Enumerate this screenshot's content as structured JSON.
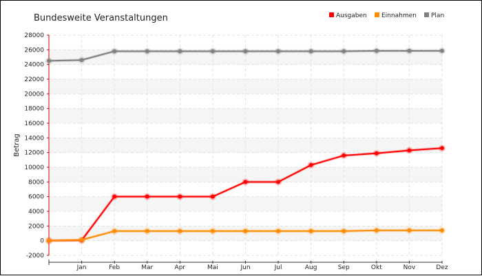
{
  "chart_data": {
    "type": "line",
    "title": "Bundesweite Veranstaltungen",
    "xlabel": "",
    "ylabel": "Betrag",
    "x_ticks": [
      "",
      "Jan",
      "Feb",
      "Mar",
      "Apr",
      "Mai",
      "Jun",
      "Jul",
      "Aug",
      "Sep",
      "Okt",
      "Nov",
      "Dez"
    ],
    "ylim": [
      -2000,
      28000
    ],
    "y_ticks": [
      -2000,
      0,
      2000,
      4000,
      6000,
      8000,
      10000,
      12000,
      14000,
      16000,
      18000,
      20000,
      22000,
      24000,
      26000,
      28000
    ],
    "grid": true,
    "legend_position": "top-right",
    "series": [
      {
        "name": "Ausgaben",
        "color": "#ff0000",
        "values": [
          0,
          50,
          6000,
          6000,
          6000,
          6000,
          8000,
          8000,
          10300,
          11600,
          11900,
          12300,
          12600
        ]
      },
      {
        "name": "Einnahmen",
        "color": "#ff8c00",
        "values": [
          0,
          100,
          1300,
          1300,
          1300,
          1300,
          1300,
          1300,
          1300,
          1300,
          1400,
          1400,
          1400
        ]
      },
      {
        "name": "Plan",
        "color": "#808080",
        "values": [
          24500,
          24600,
          25800,
          25800,
          25800,
          25800,
          25800,
          25800,
          25800,
          25800,
          25850,
          25850,
          25850
        ]
      }
    ]
  }
}
